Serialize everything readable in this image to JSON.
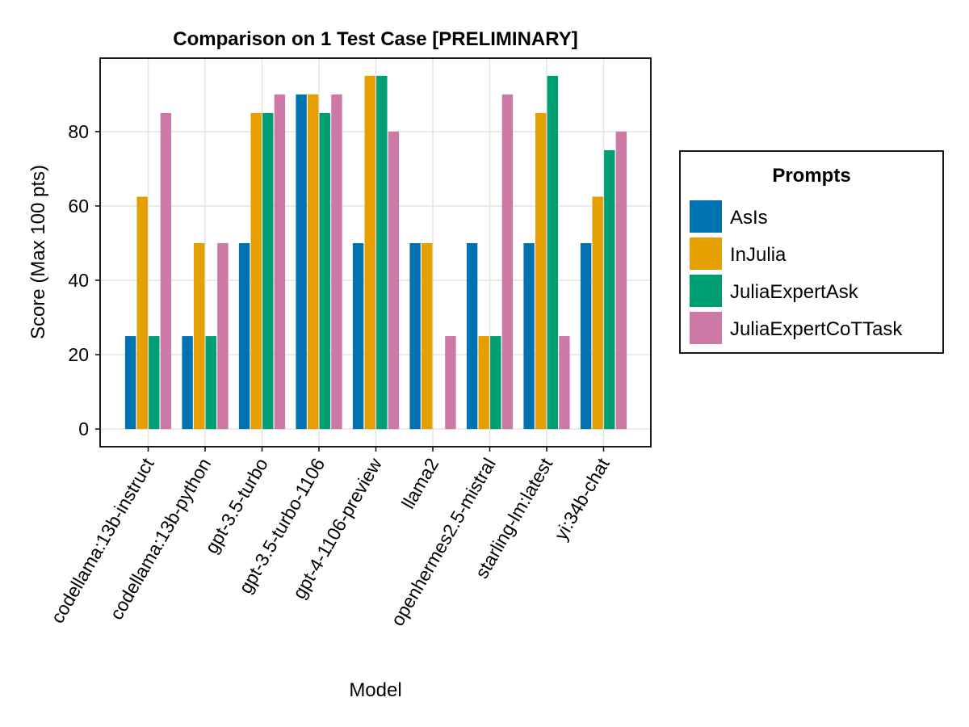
{
  "chart_data": {
    "type": "bar",
    "title": "Comparison on 1 Test Case [PRELIMINARY]",
    "xlabel": "Model",
    "ylabel": "Score (Max 100 pts)",
    "ylim": [
      -4.75,
      99.75
    ],
    "yticks": [
      0,
      20,
      40,
      60,
      80
    ],
    "grid": true,
    "legend": {
      "title": "Prompts",
      "placement": "right"
    },
    "categories": [
      "codellama:13b-instruct",
      "codellama:13b-python",
      "gpt-3.5-turbo",
      "gpt-3.5-turbo-1106",
      "gpt-4-1106-preview",
      "llama2",
      "openhermes2.5-mistral",
      "starling-lm:latest",
      "yi:34b-chat"
    ],
    "series": [
      {
        "name": "AsIs",
        "color": "#0072b2",
        "values": [
          25,
          25,
          50,
          90,
          50,
          50,
          50,
          50,
          50
        ]
      },
      {
        "name": "InJulia",
        "color": "#e69f00",
        "values": [
          62.5,
          50,
          85,
          90,
          95,
          50,
          25,
          85,
          62.5
        ]
      },
      {
        "name": "JuliaExpertAsk",
        "color": "#009e73",
        "values": [
          25,
          25,
          85,
          85,
          95,
          0,
          25,
          95,
          75
        ]
      },
      {
        "name": "JuliaExpertCoTTask",
        "color": "#cc79a7",
        "values": [
          85,
          50,
          90,
          90,
          80,
          25,
          90,
          25,
          80
        ]
      }
    ]
  }
}
